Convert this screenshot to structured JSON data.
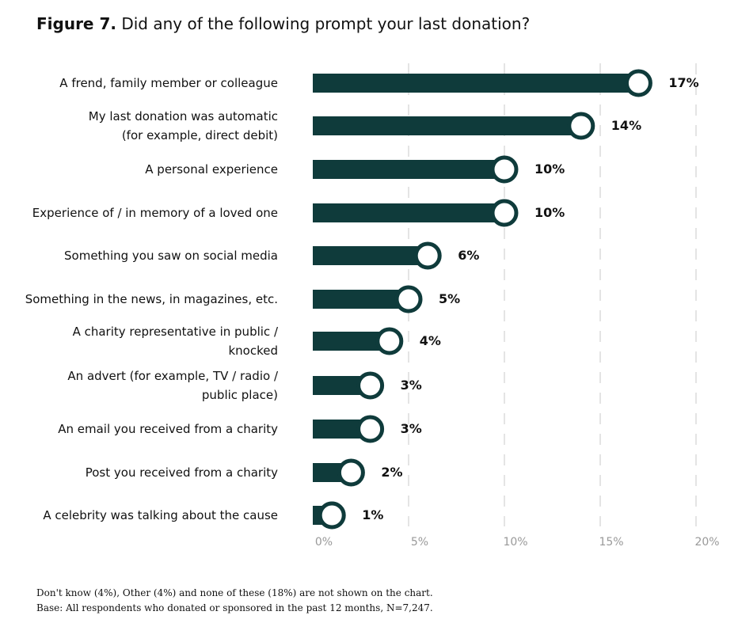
{
  "title": {
    "label": "Figure 7.",
    "text": "Did any of the following prompt your last donation?"
  },
  "chart_data": {
    "type": "bar",
    "orientation": "horizontal",
    "categories": [
      [
        "A frend, family member or colleague"
      ],
      [
        "My last donation was automatic",
        "(for example, direct debit)"
      ],
      [
        "A personal experience"
      ],
      [
        "Experience of / in memory of a loved one"
      ],
      [
        "Something you saw on social media"
      ],
      [
        "Something in the news, in magazines, etc."
      ],
      [
        "A charity representative in public /",
        "knocked"
      ],
      [
        "An advert (for example, TV / radio /",
        "public place)"
      ],
      [
        "An email you received from a charity"
      ],
      [
        "Post you received from a charity"
      ],
      [
        "A celebrity was talking about the cause"
      ]
    ],
    "values": [
      17,
      14,
      10,
      10,
      6,
      5,
      4,
      3,
      3,
      2,
      1
    ],
    "value_labels": [
      "17%",
      "14%",
      "10%",
      "10%",
      "6%",
      "5%",
      "4%",
      "3%",
      "3%",
      "2%",
      "1%"
    ],
    "xlim": [
      0,
      20
    ],
    "xticks": [
      0,
      5,
      10,
      15,
      20
    ],
    "xtick_labels": [
      "0%",
      "5%",
      "10%",
      "15%",
      "20%"
    ],
    "grid": "vertical dashed",
    "bar_color": "#0f3b3b",
    "marker": "circle"
  },
  "footnotes": [
    "Don't know (4%), Other (4%) and none of these (18%) are not shown on the chart.",
    "Base: All respondents who donated or sponsored in the past 12 months, N=7,247."
  ]
}
